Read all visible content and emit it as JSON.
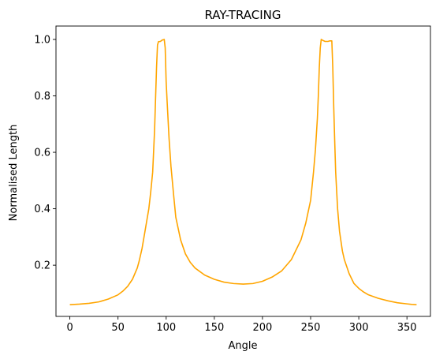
{
  "chart_data": {
    "type": "line",
    "title": "RAY-TRACING",
    "xlabel": "Angle",
    "ylabel": "Normalised Length",
    "xlim": [
      -14.4,
      374.4
    ],
    "ylim": [
      0.0186,
      1.0475
    ],
    "xticks": [
      0,
      50,
      100,
      150,
      200,
      250,
      300,
      350
    ],
    "yticks": [
      0.2,
      0.4,
      0.6,
      0.8,
      1.0
    ],
    "ytick_labels": [
      "0.2",
      "0.4",
      "0.6",
      "0.8",
      "1.0"
    ],
    "grid": false,
    "legend": "none",
    "series": [
      {
        "color": "#FFA500",
        "x": [
          0,
          10,
          20,
          30,
          40,
          50,
          55,
          60,
          65,
          70,
          72,
          75,
          78,
          80,
          82,
          84,
          86,
          88,
          89,
          90,
          91,
          92,
          94,
          96,
          97,
          98,
          99,
          100,
          101,
          103,
          105,
          108,
          110,
          115,
          120,
          125,
          130,
          140,
          150,
          160,
          170,
          180,
          190,
          200,
          210,
          220,
          230,
          240,
          245,
          250,
          253,
          255,
          257,
          258,
          259,
          260,
          261,
          262,
          263,
          265,
          268,
          270,
          272,
          273,
          274,
          275,
          276,
          278,
          280,
          283,
          285,
          290,
          295,
          300,
          305,
          310,
          320,
          330,
          340,
          350,
          355,
          360
        ],
        "y": [
          0.06,
          0.062,
          0.065,
          0.07,
          0.08,
          0.095,
          0.108,
          0.125,
          0.15,
          0.19,
          0.215,
          0.26,
          0.32,
          0.36,
          0.4,
          0.46,
          0.53,
          0.68,
          0.79,
          0.9,
          0.98,
          0.992,
          0.993,
          0.998,
          0.999,
          1.0,
          0.97,
          0.85,
          0.78,
          0.65,
          0.55,
          0.44,
          0.37,
          0.29,
          0.24,
          0.21,
          0.19,
          0.165,
          0.15,
          0.14,
          0.135,
          0.133,
          0.135,
          0.143,
          0.158,
          0.18,
          0.22,
          0.29,
          0.35,
          0.43,
          0.53,
          0.61,
          0.72,
          0.8,
          0.9,
          0.97,
          1.0,
          0.998,
          0.996,
          0.993,
          0.993,
          0.995,
          0.995,
          0.9,
          0.76,
          0.64,
          0.53,
          0.4,
          0.32,
          0.25,
          0.22,
          0.17,
          0.135,
          0.118,
          0.105,
          0.095,
          0.083,
          0.074,
          0.067,
          0.063,
          0.061,
          0.06
        ]
      }
    ]
  }
}
